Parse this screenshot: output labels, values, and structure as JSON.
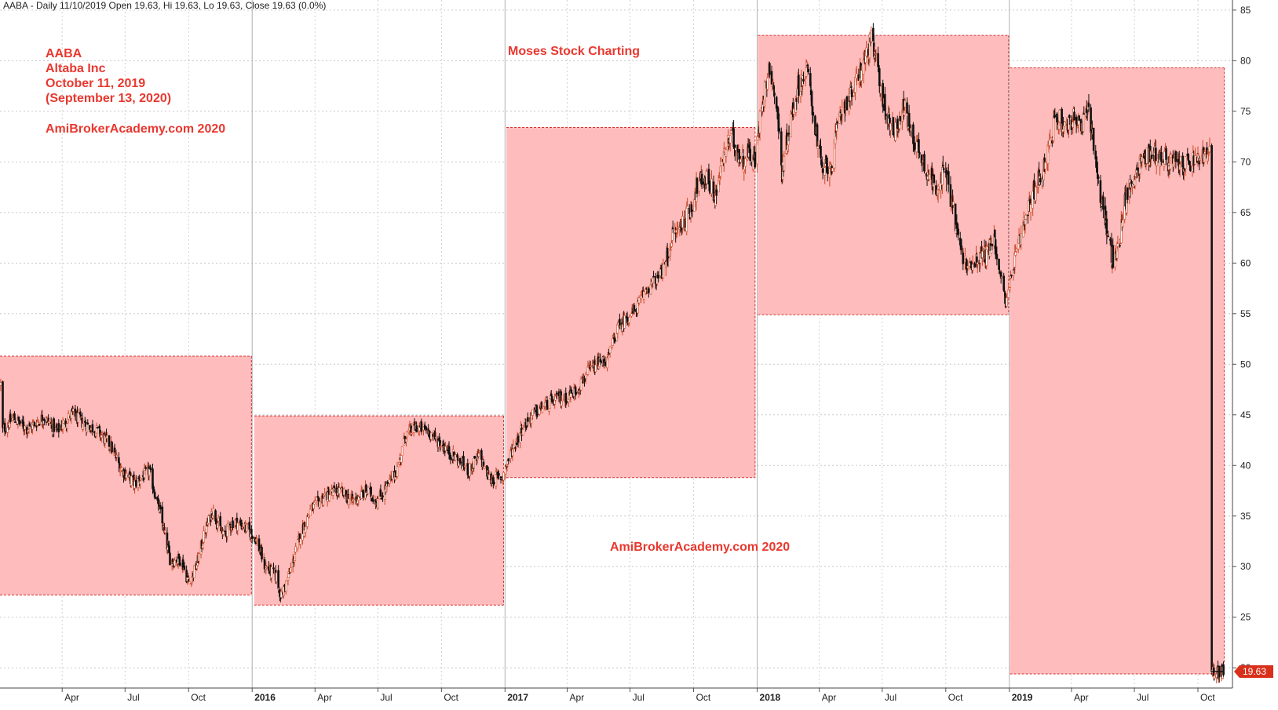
{
  "header": {
    "text": "AABA - Daily 11/10/2019 Open 19.63, Hi 19.63, Lo 19.63, Close 19.63 (0.0%)"
  },
  "annotations": {
    "symbol": "AABA",
    "company": "Altaba Inc",
    "date": "October 11, 2019",
    "date2": "(September 13, 2020)",
    "site_top": "AmiBrokerAcademy.com  2020",
    "charting": "Moses Stock Charting",
    "site_mid": "AmiBrokerAcademy.com  2020"
  },
  "chart_data": {
    "type": "candlestick",
    "ylim": [
      18,
      86
    ],
    "y_ticks": [
      20,
      25,
      30,
      35,
      40,
      45,
      50,
      55,
      60,
      65,
      70,
      75,
      80,
      85
    ],
    "x_ticks": [
      "Apr",
      "Jul",
      "Oct",
      "2016",
      "Apr",
      "Jul",
      "Oct",
      "2017",
      "Apr",
      "Jul",
      "Oct",
      "2018",
      "Apr",
      "Jul",
      "Oct",
      "2019",
      "Apr",
      "Jul",
      "Oct"
    ],
    "x_tick_dates": [
      "2015-04-01",
      "2015-07-01",
      "2015-10-01",
      "2016-01-01",
      "2016-04-01",
      "2016-07-01",
      "2016-10-01",
      "2017-01-01",
      "2017-04-01",
      "2017-07-01",
      "2017-10-01",
      "2018-01-01",
      "2018-04-01",
      "2018-07-01",
      "2018-10-01",
      "2019-01-01",
      "2019-04-01",
      "2019-07-01",
      "2019-10-01"
    ],
    "x_start": "2015-01-01",
    "x_end": "2019-11-20",
    "last_price_label": "19.63",
    "last_price": 19.63,
    "yearly_ranges": [
      {
        "year": "2015",
        "start": "2015-01-01",
        "end": "2015-12-31",
        "high": 50.8,
        "low": 27.2
      },
      {
        "year": "2016",
        "start": "2016-01-04",
        "end": "2016-12-30",
        "high": 44.9,
        "low": 26.2
      },
      {
        "year": "2017",
        "start": "2017-01-03",
        "end": "2017-12-29",
        "high": 73.4,
        "low": 38.8
      },
      {
        "year": "2018",
        "start": "2018-01-02",
        "end": "2018-12-31",
        "high": 82.5,
        "low": 54.9
      },
      {
        "year": "2019",
        "start": "2019-01-02",
        "end": "2019-11-08",
        "high": 79.3,
        "low": 19.4
      }
    ],
    "price_path": [
      [
        "2015-01-02",
        48.0
      ],
      [
        "2015-01-05",
        43.5
      ],
      [
        "2015-01-20",
        44.7
      ],
      [
        "2015-02-10",
        43.6
      ],
      [
        "2015-03-05",
        44.8
      ],
      [
        "2015-03-25",
        43.4
      ],
      [
        "2015-04-15",
        45.1
      ],
      [
        "2015-05-01",
        44.2
      ],
      [
        "2015-05-20",
        43.5
      ],
      [
        "2015-06-10",
        42.0
      ],
      [
        "2015-06-25",
        39.7
      ],
      [
        "2015-07-15",
        38.2
      ],
      [
        "2015-08-05",
        39.5
      ],
      [
        "2015-08-20",
        35.5
      ],
      [
        "2015-09-05",
        30.5
      ],
      [
        "2015-09-20",
        30.8
      ],
      [
        "2015-10-01",
        28.4
      ],
      [
        "2015-10-12",
        30.0
      ],
      [
        "2015-10-25",
        33.5
      ],
      [
        "2015-11-05",
        35.6
      ],
      [
        "2015-11-20",
        33.0
      ],
      [
        "2015-12-05",
        34.5
      ],
      [
        "2015-12-20",
        34.0
      ],
      [
        "2016-01-05",
        33.0
      ],
      [
        "2016-01-20",
        30.0
      ],
      [
        "2016-02-05",
        29.0
      ],
      [
        "2016-02-12",
        27.0
      ],
      [
        "2016-02-25",
        29.5
      ],
      [
        "2016-03-10",
        33.0
      ],
      [
        "2016-03-25",
        35.5
      ],
      [
        "2016-04-15",
        37.0
      ],
      [
        "2016-05-05",
        37.5
      ],
      [
        "2016-05-25",
        36.5
      ],
      [
        "2016-06-15",
        37.5
      ],
      [
        "2016-06-30",
        36.5
      ],
      [
        "2016-07-15",
        38.0
      ],
      [
        "2016-07-30",
        39.8
      ],
      [
        "2016-08-10",
        43.0
      ],
      [
        "2016-08-25",
        43.8
      ],
      [
        "2016-09-10",
        43.5
      ],
      [
        "2016-09-25",
        42.5
      ],
      [
        "2016-10-10",
        41.5
      ],
      [
        "2016-10-25",
        40.5
      ],
      [
        "2016-11-10",
        39.5
      ],
      [
        "2016-11-25",
        41.0
      ],
      [
        "2016-12-10",
        38.6
      ],
      [
        "2016-12-28",
        38.9
      ],
      [
        "2017-01-10",
        41.3
      ],
      [
        "2017-01-25",
        43.6
      ],
      [
        "2017-02-10",
        45.0
      ],
      [
        "2017-02-28",
        46.0
      ],
      [
        "2017-03-15",
        46.5
      ],
      [
        "2017-04-01",
        46.8
      ],
      [
        "2017-04-15",
        47.5
      ],
      [
        "2017-05-01",
        49.2
      ],
      [
        "2017-05-15",
        50.0
      ],
      [
        "2017-05-30",
        50.5
      ],
      [
        "2017-06-12",
        53.5
      ],
      [
        "2017-06-25",
        54.5
      ],
      [
        "2017-07-10",
        55.5
      ],
      [
        "2017-07-25",
        57.5
      ],
      [
        "2017-08-10",
        58.5
      ],
      [
        "2017-08-20",
        59.5
      ],
      [
        "2017-08-30",
        62.5
      ],
      [
        "2017-09-10",
        63.5
      ],
      [
        "2017-09-25",
        65.0
      ],
      [
        "2017-10-05",
        67.5
      ],
      [
        "2017-10-20",
        68.5
      ],
      [
        "2017-11-01",
        66.5
      ],
      [
        "2017-11-15",
        71.0
      ],
      [
        "2017-11-25",
        72.5
      ],
      [
        "2017-12-10",
        70.0
      ],
      [
        "2017-12-20",
        71.0
      ],
      [
        "2017-12-29",
        70.0
      ],
      [
        "2018-01-08",
        76.0
      ],
      [
        "2018-01-20",
        79.5
      ],
      [
        "2018-01-30",
        75.0
      ],
      [
        "2018-02-06",
        69.0
      ],
      [
        "2018-02-15",
        73.0
      ],
      [
        "2018-03-01",
        77.5
      ],
      [
        "2018-03-15",
        79.0
      ],
      [
        "2018-03-25",
        74.0
      ],
      [
        "2018-04-05",
        69.0
      ],
      [
        "2018-04-20",
        70.0
      ],
      [
        "2018-05-01",
        75.0
      ],
      [
        "2018-05-20",
        77.0
      ],
      [
        "2018-06-05",
        80.0
      ],
      [
        "2018-06-15",
        82.0
      ],
      [
        "2018-06-25",
        79.0
      ],
      [
        "2018-07-05",
        75.0
      ],
      [
        "2018-07-20",
        73.0
      ],
      [
        "2018-08-01",
        75.5
      ],
      [
        "2018-08-15",
        72.5
      ],
      [
        "2018-08-30",
        70.0
      ],
      [
        "2018-09-15",
        67.5
      ],
      [
        "2018-09-30",
        69.0
      ],
      [
        "2018-10-10",
        66.0
      ],
      [
        "2018-10-20",
        62.0
      ],
      [
        "2018-11-01",
        59.5
      ],
      [
        "2018-11-15",
        60.5
      ],
      [
        "2018-11-30",
        61.0
      ],
      [
        "2018-12-10",
        62.5
      ],
      [
        "2018-12-20",
        58.5
      ],
      [
        "2018-12-28",
        56.0
      ],
      [
        "2019-01-08",
        60.0
      ],
      [
        "2019-01-20",
        63.0
      ],
      [
        "2019-02-05",
        67.0
      ],
      [
        "2019-02-20",
        69.5
      ],
      [
        "2019-03-01",
        72.0
      ],
      [
        "2019-03-10",
        74.5
      ],
      [
        "2019-03-25",
        73.5
      ],
      [
        "2019-04-05",
        74.5
      ],
      [
        "2019-04-15",
        73.0
      ],
      [
        "2019-04-25",
        75.5
      ],
      [
        "2019-05-01",
        73.0
      ],
      [
        "2019-05-10",
        68.0
      ],
      [
        "2019-05-20",
        64.0
      ],
      [
        "2019-06-01",
        60.0
      ],
      [
        "2019-06-08",
        61.5
      ],
      [
        "2019-06-15",
        65.5
      ],
      [
        "2019-06-30",
        68.5
      ],
      [
        "2019-07-15",
        70.5
      ],
      [
        "2019-07-30",
        70.8
      ],
      [
        "2019-08-15",
        70.2
      ],
      [
        "2019-08-30",
        69.8
      ],
      [
        "2019-09-15",
        69.6
      ],
      [
        "2019-09-30",
        70.2
      ],
      [
        "2019-10-08",
        70.6
      ],
      [
        "2019-10-20",
        19.6
      ],
      [
        "2019-11-08",
        19.63
      ]
    ]
  }
}
